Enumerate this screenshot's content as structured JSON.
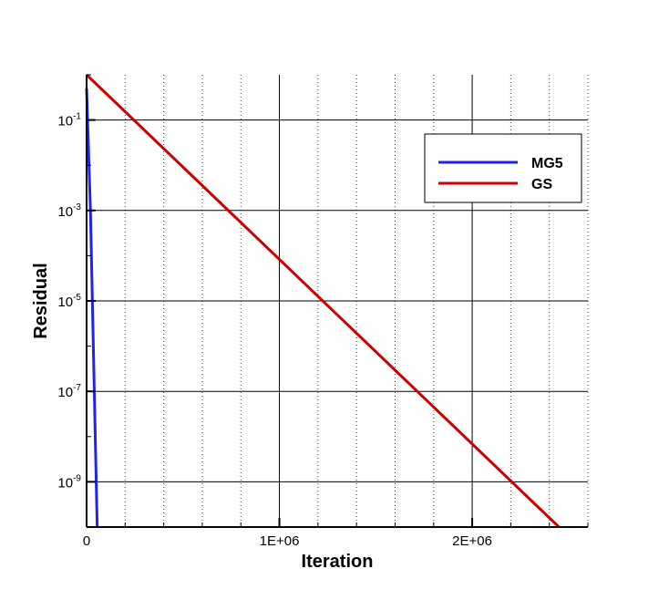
{
  "chart_data": {
    "type": "line",
    "title": "",
    "xlabel": "Iteration",
    "ylabel": "Residual",
    "xlim": [
      0,
      2600000
    ],
    "ylim": [
      1e-10,
      1
    ],
    "yscale": "log",
    "x_ticks": [
      {
        "value": 0,
        "label": "0"
      },
      {
        "value": 1000000,
        "label": "1E+06"
      },
      {
        "value": 2000000,
        "label": "2E+06"
      }
    ],
    "x_minor_gridlines": [
      200000,
      400000,
      600000,
      800000,
      1200000,
      1400000,
      1600000,
      1800000,
      2200000,
      2400000,
      2600000
    ],
    "y_ticks": [
      {
        "value": 0.1,
        "base": "10",
        "exponent": "-1"
      },
      {
        "value": 0.001,
        "base": "10",
        "exponent": "-3"
      },
      {
        "value": 1e-05,
        "base": "10",
        "exponent": "-5"
      },
      {
        "value": 1e-07,
        "base": "10",
        "exponent": "-7"
      },
      {
        "value": 1e-09,
        "base": "10",
        "exponent": "-9"
      }
    ],
    "grid": true,
    "legend": {
      "position": "top-right"
    },
    "series": [
      {
        "name": "MG5",
        "color": "#2222ee",
        "points": [
          [
            0,
            0.5
          ],
          [
            20000,
            0.001
          ],
          [
            30000,
            1e-05
          ],
          [
            40000,
            1e-07
          ],
          [
            50000,
            1e-09
          ],
          [
            55000,
            1e-10
          ]
        ]
      },
      {
        "name": "GS",
        "color": "#cc0000",
        "points": [
          [
            0,
            1.0
          ],
          [
            2450000,
            1e-10
          ]
        ]
      }
    ]
  }
}
